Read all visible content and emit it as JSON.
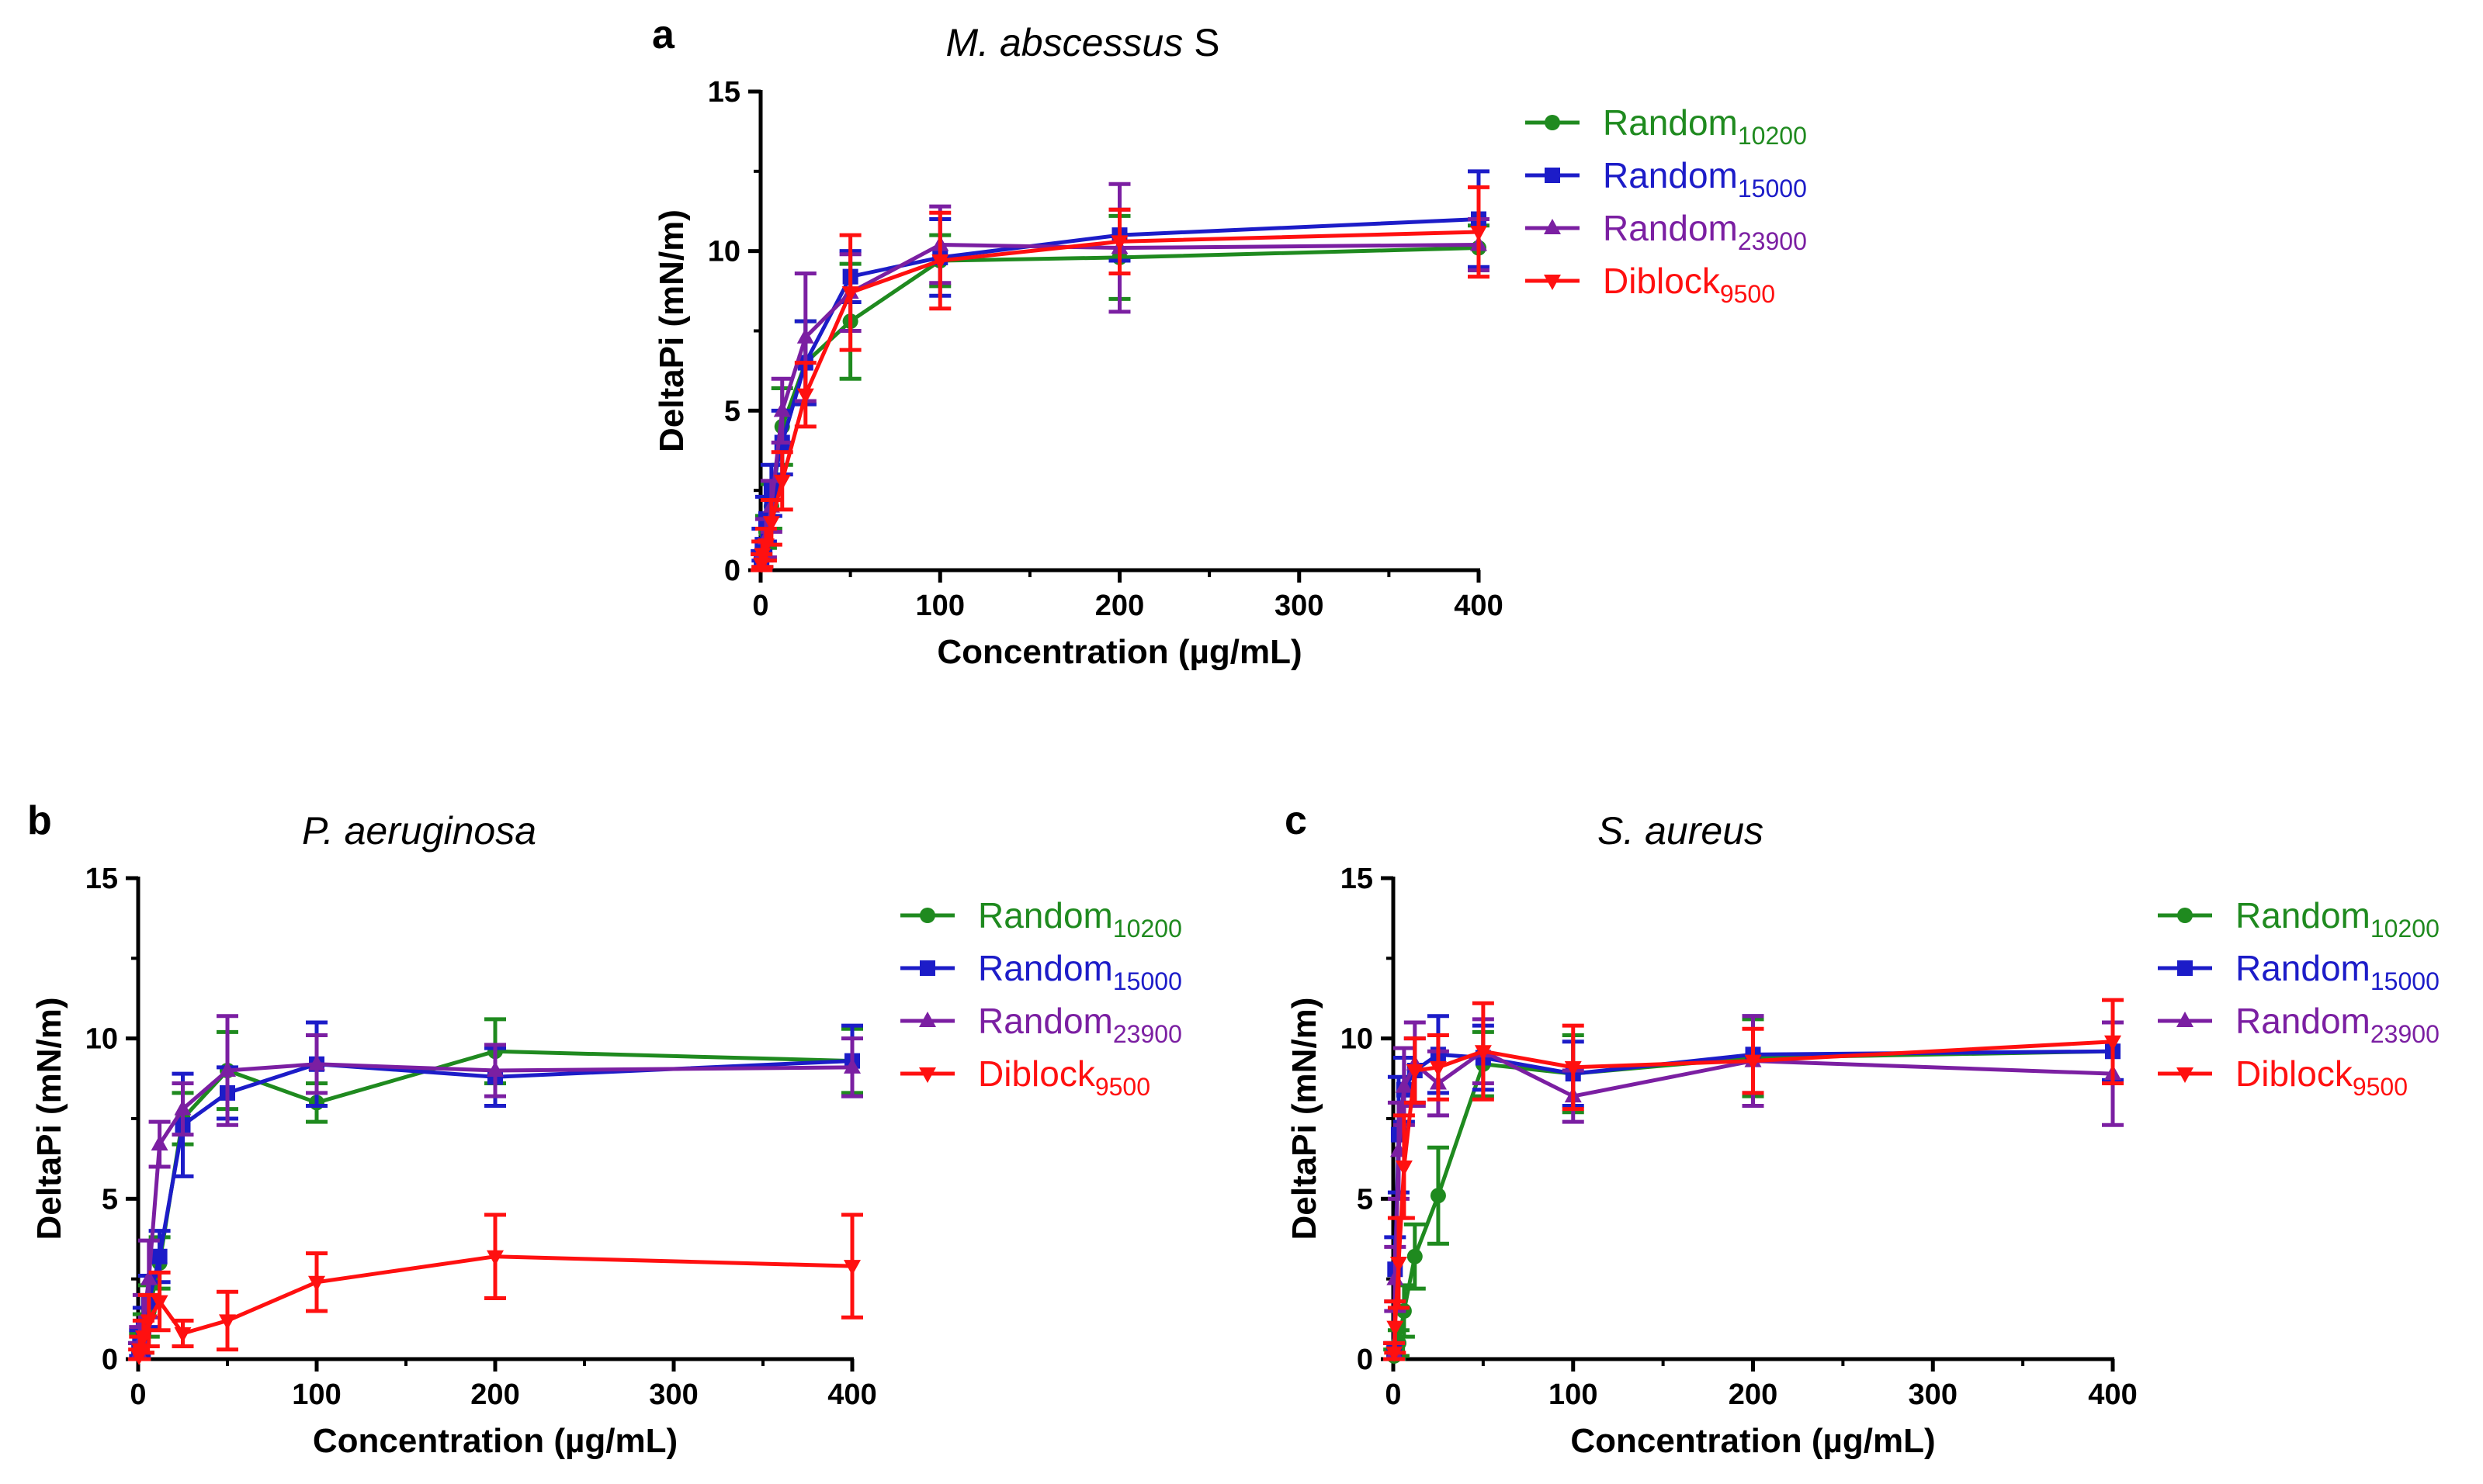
{
  "colors": {
    "Random10200": "#1f8a1f",
    "Random15000": "#1c1cc8",
    "Random23900": "#7b1fa2",
    "Diblock9500": "#ff1010"
  },
  "chart_data": [
    {
      "type": "line",
      "panel": "a",
      "title": "M. abscessus",
      "title_suffix": " S",
      "xlabel": "Concentration (µg/mL)",
      "ylabel": "DeltaPi (mN/m)",
      "xlim": [
        0,
        400
      ],
      "ylim": [
        0,
        15
      ],
      "xticks": [
        0,
        100,
        200,
        300,
        400
      ],
      "yticks": [
        0,
        5,
        10,
        15
      ],
      "legend_position": "right",
      "series": [
        {
          "name": "Random",
          "sub": "10200",
          "key": "Random10200",
          "marker": "circle",
          "x": [
            0.5,
            1,
            3,
            6,
            12,
            25,
            50,
            100,
            200,
            400
          ],
          "y": [
            0.2,
            0.5,
            1.2,
            2.0,
            4.5,
            6.5,
            7.8,
            9.7,
            9.8,
            10.1
          ],
          "err": [
            0.3,
            0.4,
            0.5,
            0.7,
            1.2,
            1.3,
            1.8,
            0.8,
            1.3,
            0.7
          ]
        },
        {
          "name": "Random",
          "sub": "15000",
          "key": "Random15000",
          "marker": "square",
          "x": [
            0.5,
            1,
            3,
            6,
            12,
            25,
            50,
            100,
            200,
            400
          ],
          "y": [
            0.3,
            0.8,
            1.6,
            2.5,
            4.0,
            6.5,
            9.2,
            9.8,
            10.5,
            11.0
          ],
          "err": [
            0.3,
            0.5,
            0.7,
            0.8,
            1.0,
            1.3,
            0.8,
            1.2,
            0.8,
            1.5
          ]
        },
        {
          "name": "Random",
          "sub": "23900",
          "key": "Random23900",
          "marker": "triangle-up",
          "x": [
            0.5,
            1,
            3,
            6,
            12,
            25,
            50,
            100,
            200,
            400
          ],
          "y": [
            0.2,
            0.5,
            1.0,
            2.0,
            5.0,
            7.3,
            8.7,
            10.2,
            10.1,
            10.2
          ],
          "err": [
            0.3,
            0.4,
            0.6,
            0.8,
            1.0,
            2.0,
            1.2,
            1.2,
            2.0,
            0.8
          ]
        },
        {
          "name": "Diblock",
          "sub": "9500",
          "key": "Diblock9500",
          "marker": "triangle-down",
          "x": [
            0.5,
            1,
            3,
            6,
            12,
            25,
            50,
            100,
            200,
            400
          ],
          "y": [
            0.2,
            0.5,
            0.8,
            1.5,
            2.8,
            5.5,
            8.7,
            9.7,
            10.3,
            10.6
          ],
          "err": [
            0.3,
            0.4,
            0.5,
            0.7,
            0.9,
            1.0,
            1.8,
            1.5,
            1.0,
            1.4
          ]
        }
      ]
    },
    {
      "type": "line",
      "panel": "b",
      "title": "P. aeruginosa",
      "title_suffix": "",
      "xlabel": "Concentration (µg/mL)",
      "ylabel": "DeltaPi (mN/m)",
      "xlim": [
        0,
        400
      ],
      "ylim": [
        0,
        15
      ],
      "xticks": [
        0,
        100,
        200,
        300,
        400
      ],
      "yticks": [
        0,
        5,
        10,
        15
      ],
      "legend_position": "right",
      "series": [
        {
          "name": "Random",
          "sub": "10200",
          "key": "Random10200",
          "marker": "circle",
          "x": [
            0.5,
            1,
            3,
            6,
            12,
            25,
            50,
            100,
            200,
            400
          ],
          "y": [
            0.2,
            0.4,
            0.8,
            1.5,
            3.0,
            7.5,
            9.0,
            8.0,
            9.6,
            9.3
          ],
          "err": [
            0.3,
            0.4,
            0.6,
            0.8,
            0.8,
            0.8,
            1.2,
            0.6,
            1.0,
            1.0
          ]
        },
        {
          "name": "Random",
          "sub": "15000",
          "key": "Random15000",
          "marker": "square",
          "x": [
            0.5,
            1,
            3,
            6,
            12,
            25,
            50,
            100,
            200,
            400
          ],
          "y": [
            0.2,
            0.5,
            1.0,
            1.8,
            3.2,
            7.3,
            8.3,
            9.2,
            8.8,
            9.3
          ],
          "err": [
            0.3,
            0.4,
            0.6,
            0.8,
            0.8,
            1.6,
            0.8,
            1.3,
            0.9,
            1.1
          ]
        },
        {
          "name": "Random",
          "sub": "23900",
          "key": "Random23900",
          "marker": "triangle-up",
          "x": [
            0.5,
            1,
            3,
            6,
            12,
            25,
            50,
            100,
            200,
            400
          ],
          "y": [
            0.2,
            0.5,
            1.2,
            2.5,
            6.7,
            7.8,
            9.0,
            9.2,
            9.0,
            9.1
          ],
          "err": [
            0.3,
            0.5,
            0.8,
            1.2,
            0.7,
            0.8,
            1.7,
            0.9,
            0.8,
            0.9
          ]
        },
        {
          "name": "Diblock",
          "sub": "9500",
          "key": "Diblock9500",
          "marker": "triangle-down",
          "x": [
            0.5,
            1,
            3,
            6,
            12,
            25,
            50,
            100,
            200,
            400
          ],
          "y": [
            0.1,
            0.3,
            0.7,
            1.2,
            1.8,
            0.8,
            1.2,
            2.4,
            3.2,
            2.9
          ],
          "err": [
            0.2,
            0.4,
            0.5,
            0.8,
            0.9,
            0.4,
            0.9,
            0.9,
            1.3,
            1.6
          ]
        }
      ]
    },
    {
      "type": "line",
      "panel": "c",
      "title": "S. aureus",
      "title_suffix": "",
      "xlabel": "Concentration (µg/mL)",
      "ylabel": "DeltaPi (mN/m)",
      "xlim": [
        0,
        400
      ],
      "ylim": [
        0,
        15
      ],
      "xticks": [
        0,
        100,
        200,
        300,
        400
      ],
      "yticks": [
        0,
        5,
        10,
        15
      ],
      "legend_position": "right",
      "series": [
        {
          "name": "Random",
          "sub": "10200",
          "key": "Random10200",
          "marker": "circle",
          "x": [
            0.5,
            1,
            3,
            6,
            12,
            25,
            50,
            100,
            200,
            400
          ],
          "y": [
            0.1,
            0.2,
            0.5,
            1.5,
            3.2,
            5.1,
            9.2,
            8.9,
            9.4,
            9.6
          ],
          "err": [
            0.2,
            0.3,
            0.4,
            0.8,
            1.0,
            1.5,
            1.0,
            1.2,
            1.2,
            0.9
          ]
        },
        {
          "name": "Random",
          "sub": "15000",
          "key": "Random15000",
          "marker": "square",
          "x": [
            0.5,
            1,
            3,
            6,
            12,
            25,
            50,
            100,
            200,
            400
          ],
          "y": [
            0.2,
            2.8,
            7.0,
            8.4,
            9.0,
            9.5,
            9.4,
            8.9,
            9.5,
            9.6
          ],
          "err": [
            0.3,
            1.0,
            1.8,
            1.0,
            1.0,
            1.2,
            1.0,
            1.0,
            1.2,
            0.9
          ]
        },
        {
          "name": "Random",
          "sub": "23900",
          "key": "Random23900",
          "marker": "triangle-up",
          "x": [
            0.5,
            1,
            3,
            6,
            12,
            25,
            50,
            100,
            200,
            400
          ],
          "y": [
            0.2,
            2.5,
            6.5,
            8.5,
            9.2,
            8.6,
            9.6,
            8.2,
            9.3,
            8.9
          ],
          "err": [
            0.3,
            1.0,
            1.5,
            1.2,
            1.3,
            1.0,
            1.0,
            0.8,
            1.4,
            1.6
          ]
        },
        {
          "name": "Diblock",
          "sub": "9500",
          "key": "Diblock9500",
          "marker": "triangle-down",
          "x": [
            0.5,
            1,
            3,
            6,
            12,
            25,
            50,
            100,
            200,
            400
          ],
          "y": [
            0.2,
            1.0,
            3.0,
            6.0,
            9.0,
            9.1,
            9.6,
            9.1,
            9.3,
            9.9
          ],
          "err": [
            0.3,
            0.8,
            1.4,
            1.6,
            1.0,
            1.0,
            1.5,
            1.3,
            1.0,
            1.3
          ]
        }
      ]
    }
  ]
}
